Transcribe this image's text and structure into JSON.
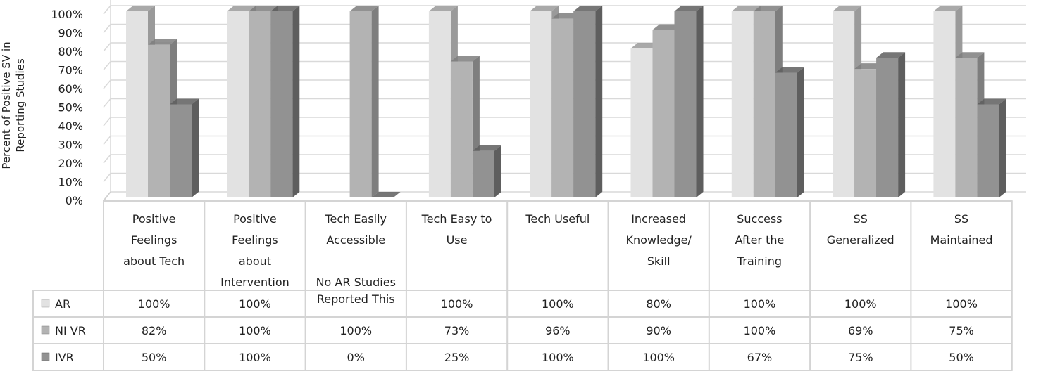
{
  "chart_data": {
    "type": "bar",
    "style": "3d-clustered-with-data-table",
    "ylabel": "Percent of Positive SV in Reporting Studies",
    "ylabel_lines": [
      "Percent of Positive SV in",
      "Reporting Studies"
    ],
    "ylim": [
      0,
      100
    ],
    "yticks": [
      "0%",
      "10%",
      "20%",
      "30%",
      "40%",
      "50%",
      "60%",
      "70%",
      "80%",
      "90%",
      "100%"
    ],
    "grid": true,
    "categories": [
      [
        "Positive",
        "Feelings",
        "about Tech"
      ],
      [
        "Positive",
        "Feelings",
        "about",
        "Intervention"
      ],
      [
        "Tech Easily",
        "Accessible",
        "",
        "No AR Studies"
      ],
      [
        "Tech Easy to",
        "Use"
      ],
      [
        "Tech Useful"
      ],
      [
        "Increased",
        "Knowledge/",
        "Skill"
      ],
      [
        "Success",
        "After the",
        "Training"
      ],
      [
        "SS",
        "Generalized"
      ],
      [
        "SS",
        "Maintained"
      ]
    ],
    "series": [
      {
        "name": "AR",
        "color": "#e2e2e2",
        "side": "#9a9a9a",
        "values": [
          100,
          100,
          null,
          100,
          100,
          80,
          100,
          100,
          100
        ],
        "labels": [
          "100%",
          "100%",
          "Reported This",
          "100%",
          "100%",
          "80%",
          "100%",
          "100%",
          "100%"
        ]
      },
      {
        "name": "NI VR",
        "color": "#b3b3b3",
        "side": "#7e7e7e",
        "values": [
          82,
          100,
          100,
          73,
          96,
          90,
          100,
          69,
          75
        ],
        "labels": [
          "82%",
          "100%",
          "100%",
          "73%",
          "96%",
          "90%",
          "100%",
          "69%",
          "75%"
        ]
      },
      {
        "name": "IVR",
        "color": "#929292",
        "side": "#5e5e5e",
        "values": [
          50,
          100,
          0,
          25,
          100,
          100,
          67,
          75,
          50
        ],
        "labels": [
          "50%",
          "100%",
          "0%",
          "25%",
          "100%",
          "100%",
          "67%",
          "75%",
          "50%"
        ]
      }
    ],
    "legend": "table-left"
  }
}
